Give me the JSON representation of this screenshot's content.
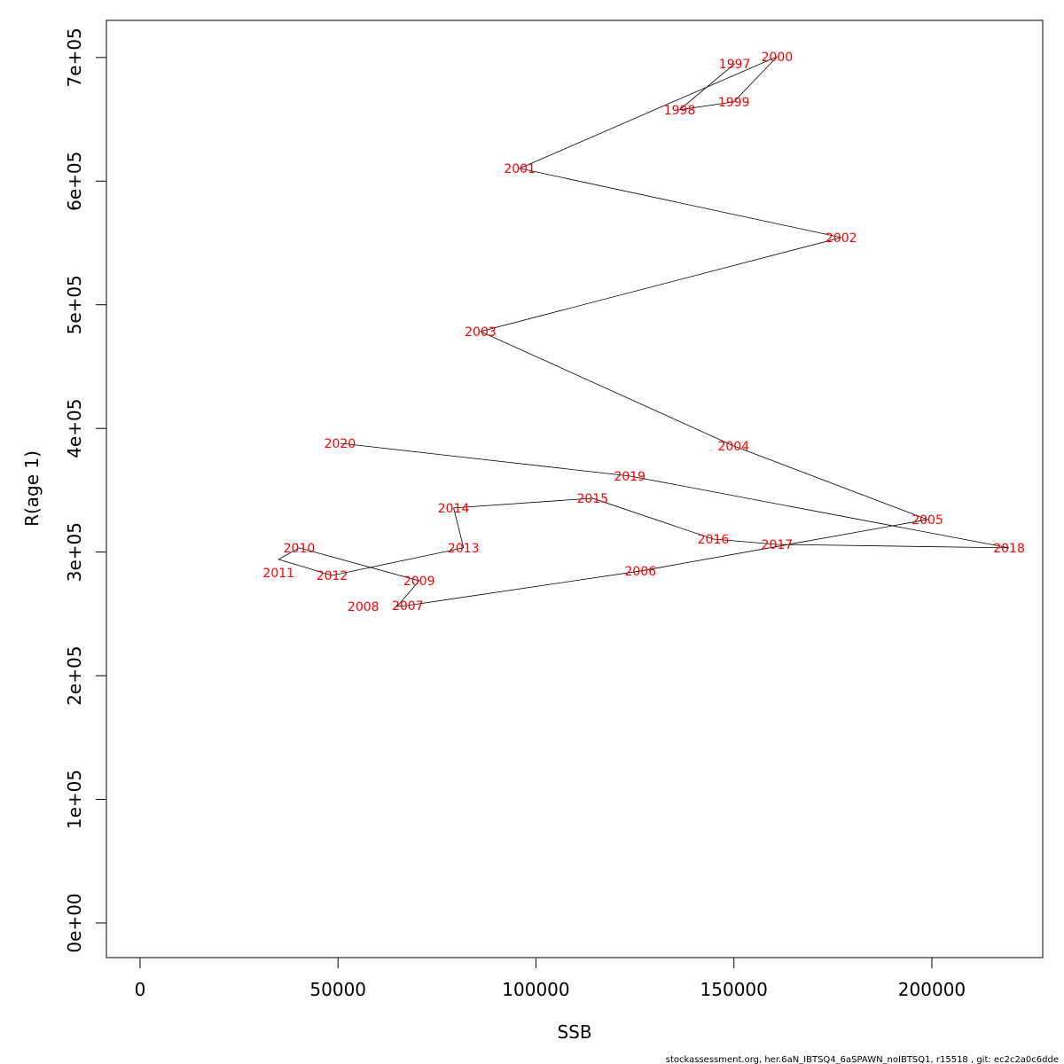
{
  "chart_data": {
    "type": "line",
    "title": "",
    "xlabel": "SSB",
    "ylabel": "R(age 1)",
    "xlim": [
      -8500,
      228000
    ],
    "ylim": [
      -28000,
      730000
    ],
    "x_ticks": [
      0,
      50000,
      100000,
      150000,
      200000
    ],
    "x_tick_labels": [
      "0",
      "50000",
      "100000",
      "150000",
      "200000"
    ],
    "y_ticks": [
      0,
      100000,
      200000,
      300000,
      400000,
      500000,
      600000,
      700000
    ],
    "y_tick_labels": [
      "0e+00",
      "1e+05",
      "2e+05",
      "3e+05",
      "4e+05",
      "5e+05",
      "6e+05",
      "7e+05"
    ],
    "grid": false,
    "line_color": "#000000",
    "label_color": "#ff0000",
    "points": [
      {
        "label": "1997",
        "x": 150200,
        "y": 695000
      },
      {
        "label": "1998",
        "x": 136300,
        "y": 657700
      },
      {
        "label": "1999",
        "x": 150000,
        "y": 664100
      },
      {
        "label": "2000",
        "x": 160900,
        "y": 700700
      },
      {
        "label": "2001",
        "x": 95900,
        "y": 610300
      },
      {
        "label": "2002",
        "x": 177100,
        "y": 554400
      },
      {
        "label": "2003",
        "x": 86000,
        "y": 478400
      },
      {
        "label": "2004",
        "x": 149900,
        "y": 385900
      },
      {
        "label": "2005",
        "x": 198900,
        "y": 326300
      },
      {
        "label": "2006",
        "x": 126400,
        "y": 284700
      },
      {
        "label": "2007",
        "x": 67600,
        "y": 256800
      },
      {
        "label": "2008",
        "x": 64900,
        "y": 256000
      },
      {
        "label": "2009",
        "x": 70500,
        "y": 276800
      },
      {
        "label": "2010",
        "x": 40200,
        "y": 303400
      },
      {
        "label": "2011",
        "x": 35000,
        "y": 294100
      },
      {
        "label": "2012",
        "x": 48500,
        "y": 281100
      },
      {
        "label": "2013",
        "x": 81700,
        "y": 303400
      },
      {
        "label": "2014",
        "x": 79200,
        "y": 335700
      },
      {
        "label": "2015",
        "x": 114300,
        "y": 343500
      },
      {
        "label": "2016",
        "x": 144800,
        "y": 310500
      },
      {
        "label": "2017",
        "x": 160900,
        "y": 306200
      },
      {
        "label": "2018",
        "x": 219500,
        "y": 303400
      },
      {
        "label": "2019",
        "x": 123700,
        "y": 361500
      },
      {
        "label": "2020",
        "x": 50500,
        "y": 388000
      }
    ]
  },
  "footer": "stockassessment.org, her.6aN_IBTSQ4_6aSPAWN_noIBTSQ1, r15518 , git: ec2c2a0c6dde"
}
